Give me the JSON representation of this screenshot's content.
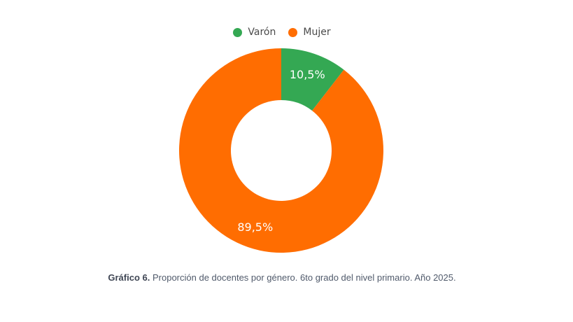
{
  "chart_data": {
    "type": "pie",
    "donut": true,
    "categories": [
      "Varón",
      "Mujer"
    ],
    "values": [
      10.5,
      89.5
    ],
    "value_labels": [
      "10,5%",
      "89,5%"
    ],
    "colors": [
      "#34a853",
      "#ff6d01"
    ],
    "start_angle_deg": 0,
    "direction": "clockwise",
    "legend_position": "top"
  },
  "caption": {
    "label": "Gráfico 6.",
    "text": "Proporción de docentes por género. 6to grado del nivel primario. Año 2025."
  }
}
